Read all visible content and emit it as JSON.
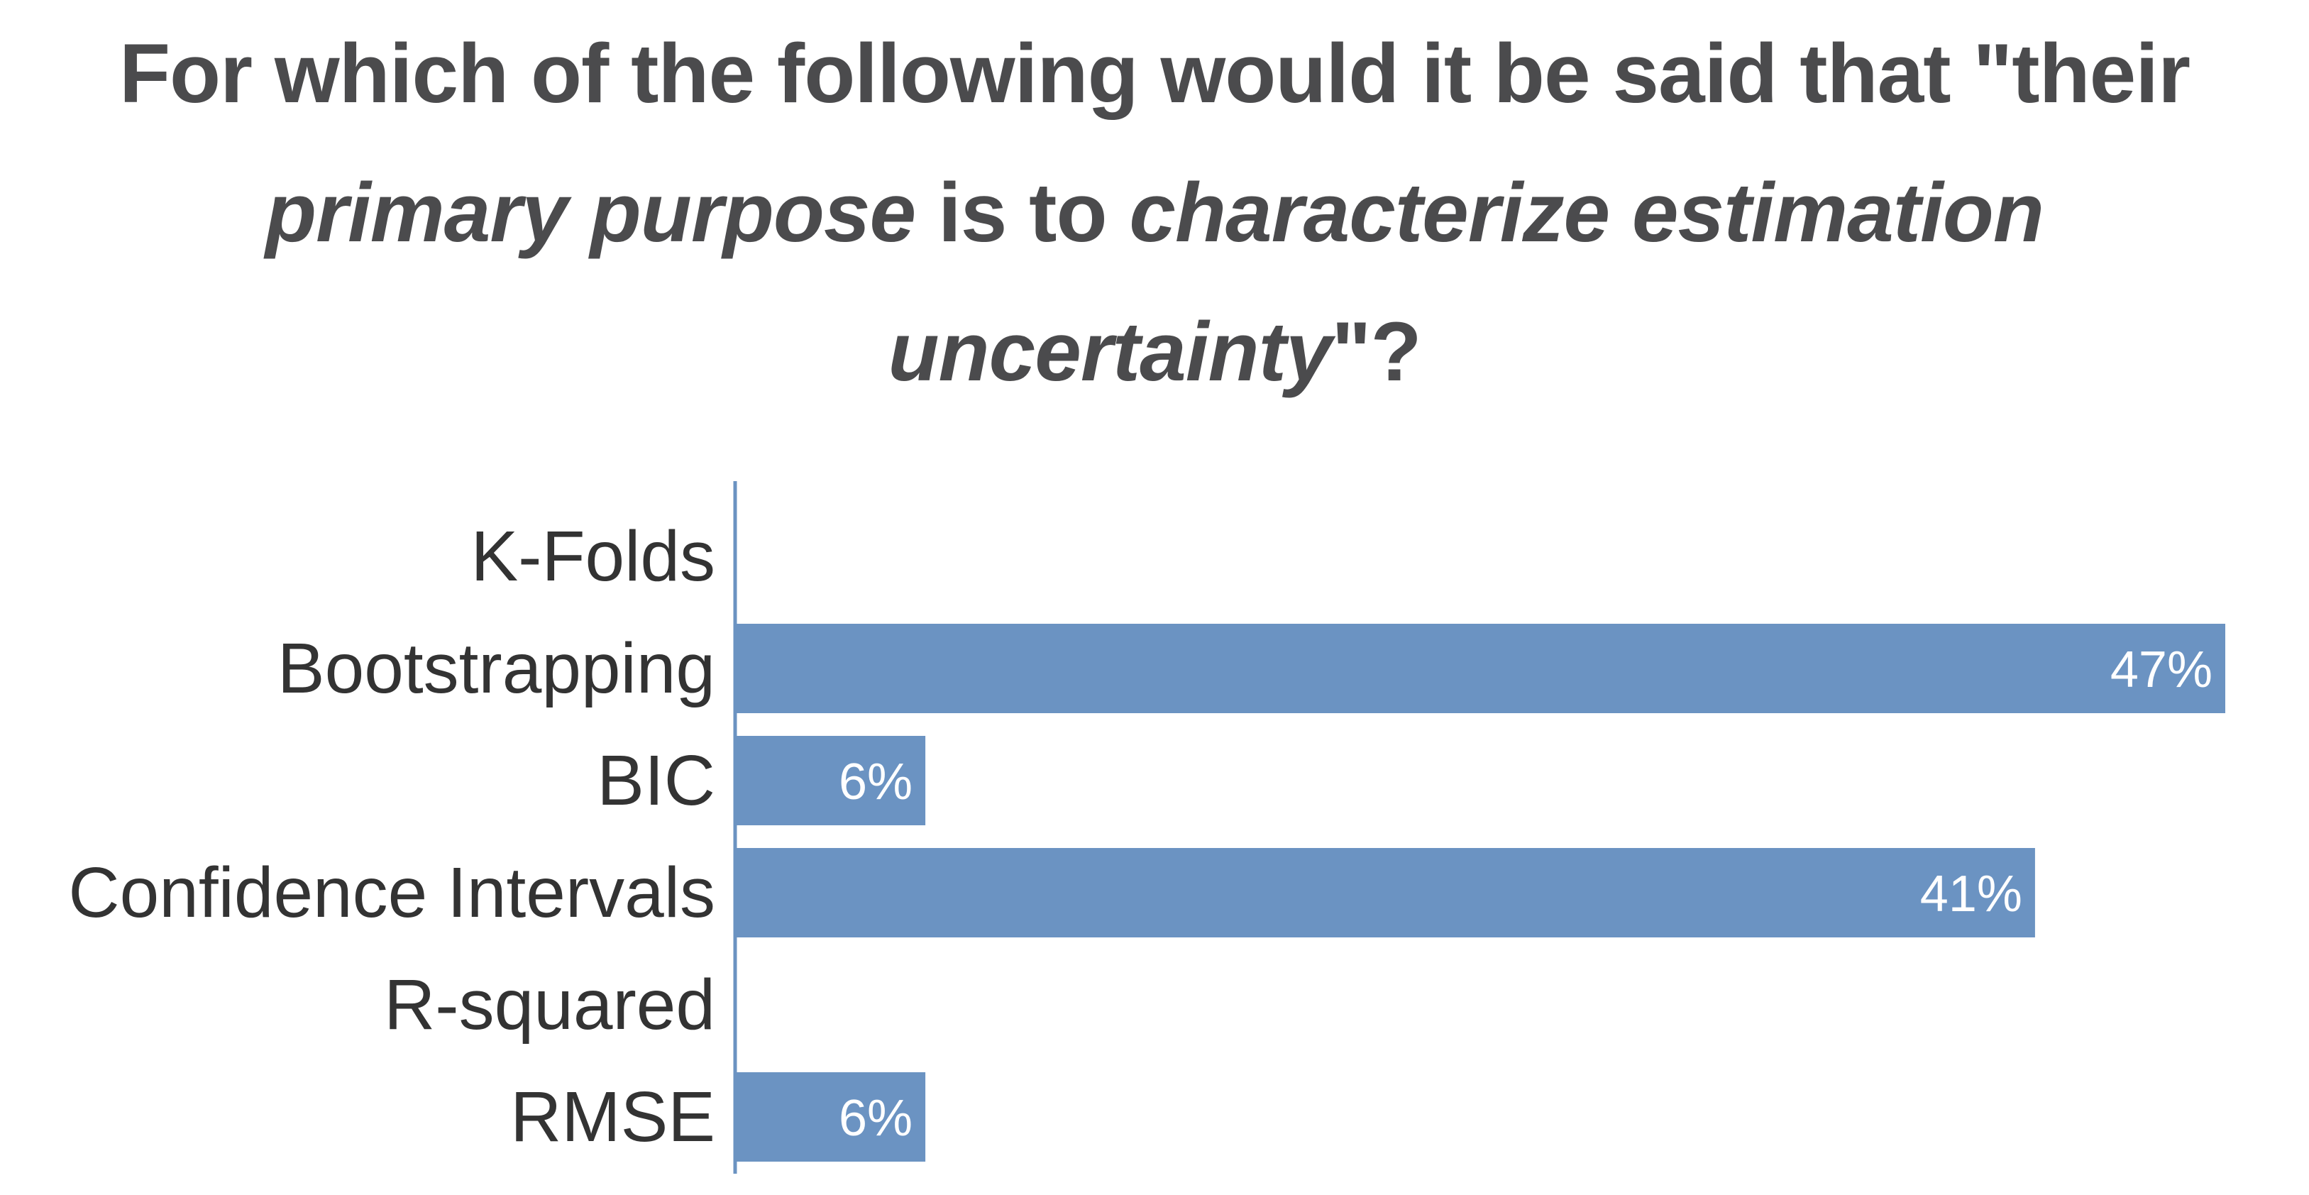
{
  "title": {
    "line1": "For which of the following would it be said that \"their",
    "line2_italic_a": "primary purpose",
    "line2_plain": " is to ",
    "line2_italic_b": "characterize estimation",
    "line3_italic": "uncertainty",
    "line3_plain": "\"?"
  },
  "colors": {
    "bar": "#6b93c2",
    "title": "#4b4b4d",
    "label": "#333333",
    "axis": "#6b93c2"
  },
  "chart_data": {
    "type": "bar",
    "orientation": "horizontal",
    "categories": [
      "K-Folds",
      "Bootstrapping",
      "BIC",
      "Confidence Intervals",
      "R-squared",
      "RMSE"
    ],
    "values": [
      0,
      47,
      6,
      41,
      0,
      6
    ],
    "value_labels": [
      "",
      "47%",
      "6%",
      "41%",
      "",
      "6%"
    ],
    "unit": "%",
    "xlim": [
      0,
      47
    ],
    "grid": false,
    "legend": "none"
  }
}
